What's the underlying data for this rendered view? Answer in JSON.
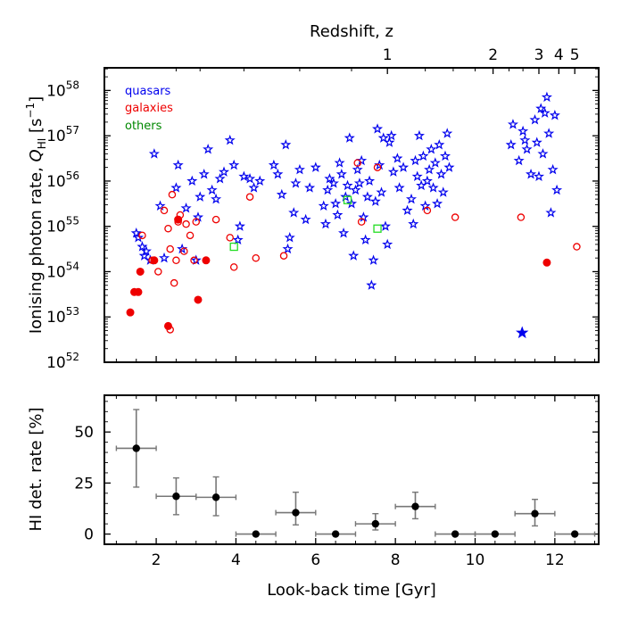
{
  "chart_data": [
    {
      "type": "scatter",
      "title": "",
      "top_axis_label": "Redshift, z",
      "top_ticks": [
        "1",
        "2",
        "3",
        "4",
        "5"
      ],
      "top_tick_times_gyr": [
        7.8,
        10.45,
        11.6,
        12.1,
        12.5
      ],
      "xlabel": "Look-back time [Gyr]",
      "ylabel_prefix": "Ionising photon rate, ",
      "ylabel_symbol": "Q",
      "ylabel_sub": "HI",
      "ylabel_unit_open": " [s",
      "ylabel_unit_exp": "−1",
      "ylabel_unit_close": "]",
      "xlim": [
        0.7,
        13.1
      ],
      "ylim_log10": [
        52,
        58.5
      ],
      "y_tick_base": "10",
      "y_tick_exponents": [
        "52",
        "53",
        "54",
        "55",
        "56",
        "57",
        "58"
      ],
      "legend": [
        {
          "label": "quasars",
          "color": "#0000ee"
        },
        {
          "label": "galaxies",
          "color": "#ee0000"
        },
        {
          "label": "others",
          "color": "#008800"
        }
      ],
      "series": [
        {
          "name": "quasars",
          "marker": "star-open",
          "color": "#0000ee",
          "points": [
            [
              1.95,
              56.6
            ],
            [
              1.5,
              54.85
            ],
            [
              1.55,
              54.75
            ],
            [
              1.65,
              54.55
            ],
            [
              1.7,
              54.35
            ],
            [
              1.75,
              54.45
            ],
            [
              1.85,
              54.25
            ],
            [
              2.1,
              55.45
            ],
            [
              2.2,
              54.3
            ],
            [
              2.5,
              55.85
            ],
            [
              2.55,
              56.35
            ],
            [
              2.65,
              54.5
            ],
            [
              2.75,
              55.4
            ],
            [
              2.9,
              56.0
            ],
            [
              3.0,
              54.25
            ],
            [
              3.05,
              55.2
            ],
            [
              3.1,
              55.65
            ],
            [
              3.2,
              56.15
            ],
            [
              3.3,
              56.7
            ],
            [
              3.4,
              55.8
            ],
            [
              3.5,
              55.6
            ],
            [
              3.6,
              56.05
            ],
            [
              3.7,
              56.2
            ],
            [
              3.85,
              56.9
            ],
            [
              3.95,
              56.35
            ],
            [
              4.05,
              54.7
            ],
            [
              4.1,
              55.0
            ],
            [
              4.2,
              56.1
            ],
            [
              4.35,
              56.05
            ],
            [
              4.45,
              55.85
            ],
            [
              4.6,
              56.0
            ],
            [
              4.95,
              56.35
            ],
            [
              5.05,
              56.15
            ],
            [
              5.15,
              55.7
            ],
            [
              5.25,
              56.8
            ],
            [
              5.3,
              54.5
            ],
            [
              5.35,
              54.75
            ],
            [
              5.45,
              55.3
            ],
            [
              5.5,
              55.95
            ],
            [
              5.6,
              56.25
            ],
            [
              5.75,
              55.15
            ],
            [
              5.85,
              55.85
            ],
            [
              6.0,
              56.3
            ],
            [
              6.2,
              55.45
            ],
            [
              6.25,
              55.05
            ],
            [
              6.3,
              55.8
            ],
            [
              6.35,
              56.05
            ],
            [
              6.45,
              55.95
            ],
            [
              6.5,
              55.5
            ],
            [
              6.55,
              55.25
            ],
            [
              6.6,
              56.4
            ],
            [
              6.65,
              56.15
            ],
            [
              6.7,
              54.85
            ],
            [
              6.75,
              55.65
            ],
            [
              6.8,
              55.9
            ],
            [
              6.85,
              56.95
            ],
            [
              6.9,
              55.5
            ],
            [
              6.95,
              54.35
            ],
            [
              7.0,
              55.8
            ],
            [
              7.05,
              56.25
            ],
            [
              7.1,
              55.95
            ],
            [
              7.15,
              56.45
            ],
            [
              7.2,
              55.2
            ],
            [
              7.25,
              54.7
            ],
            [
              7.3,
              55.65
            ],
            [
              7.35,
              56.0
            ],
            [
              7.4,
              53.7
            ],
            [
              7.45,
              54.25
            ],
            [
              7.5,
              55.55
            ],
            [
              7.55,
              57.15
            ],
            [
              7.6,
              56.35
            ],
            [
              7.65,
              55.75
            ],
            [
              7.7,
              56.95
            ],
            [
              7.75,
              55.0
            ],
            [
              7.8,
              54.6
            ],
            [
              7.85,
              56.85
            ],
            [
              7.9,
              57.0
            ],
            [
              7.95,
              56.2
            ],
            [
              8.05,
              56.5
            ],
            [
              8.1,
              55.85
            ],
            [
              8.2,
              56.3
            ],
            [
              8.3,
              55.35
            ],
            [
              8.4,
              55.6
            ],
            [
              8.45,
              55.05
            ],
            [
              8.5,
              56.45
            ],
            [
              8.55,
              56.1
            ],
            [
              8.6,
              57.0
            ],
            [
              8.65,
              55.9
            ],
            [
              8.7,
              56.55
            ],
            [
              8.75,
              55.45
            ],
            [
              8.8,
              56.0
            ],
            [
              8.85,
              56.25
            ],
            [
              8.9,
              56.7
            ],
            [
              8.95,
              55.85
            ],
            [
              9.0,
              56.4
            ],
            [
              9.05,
              55.5
            ],
            [
              9.1,
              56.8
            ],
            [
              9.15,
              56.15
            ],
            [
              9.2,
              55.75
            ],
            [
              9.25,
              56.55
            ],
            [
              9.3,
              57.05
            ],
            [
              9.35,
              56.3
            ],
            [
              10.9,
              56.8
            ],
            [
              10.95,
              57.25
            ],
            [
              11.1,
              56.45
            ],
            [
              11.2,
              57.1
            ],
            [
              11.25,
              56.9
            ],
            [
              11.3,
              56.7
            ],
            [
              11.4,
              56.15
            ],
            [
              11.5,
              57.35
            ],
            [
              11.55,
              56.85
            ],
            [
              11.6,
              56.1
            ],
            [
              11.65,
              57.6
            ],
            [
              11.7,
              56.6
            ],
            [
              11.75,
              57.5
            ],
            [
              11.8,
              57.85
            ],
            [
              11.85,
              57.05
            ],
            [
              11.9,
              55.3
            ],
            [
              11.95,
              56.25
            ],
            [
              12.0,
              57.45
            ],
            [
              12.05,
              55.8
            ],
            [
              11.18,
              52.65
            ]
          ]
        },
        {
          "name": "galaxies (open)",
          "marker": "circle-open",
          "color": "#ee0000",
          "points": [
            [
              1.65,
              54.8
            ],
            [
              1.9,
              54.25
            ],
            [
              2.05,
              54.0
            ],
            [
              2.2,
              55.35
            ],
            [
              2.3,
              54.95
            ],
            [
              2.35,
              54.5
            ],
            [
              2.4,
              55.7
            ],
            [
              2.45,
              53.75
            ],
            [
              2.5,
              54.25
            ],
            [
              2.55,
              55.1
            ],
            [
              2.6,
              55.25
            ],
            [
              2.7,
              54.45
            ],
            [
              2.75,
              55.05
            ],
            [
              2.85,
              54.8
            ],
            [
              2.95,
              54.25
            ],
            [
              3.0,
              55.1
            ],
            [
              3.5,
              55.15
            ],
            [
              3.85,
              54.75
            ],
            [
              3.95,
              54.1
            ],
            [
              4.35,
              55.65
            ],
            [
              4.5,
              54.3
            ],
            [
              5.2,
              54.35
            ],
            [
              7.05,
              56.4
            ],
            [
              7.15,
              55.1
            ],
            [
              7.55,
              56.3
            ],
            [
              8.8,
              55.35
            ],
            [
              9.5,
              55.2
            ],
            [
              11.15,
              55.2
            ],
            [
              12.55,
              54.55
            ],
            [
              2.35,
              52.72
            ]
          ]
        },
        {
          "name": "galaxies (filled)",
          "marker": "circle-filled",
          "color": "#ee0000",
          "points": [
            [
              1.35,
              53.1
            ],
            [
              1.45,
              53.55
            ],
            [
              1.55,
              53.55
            ],
            [
              1.6,
              54.0
            ],
            [
              1.95,
              54.25
            ],
            [
              2.3,
              52.8
            ],
            [
              2.55,
              55.15
            ],
            [
              3.05,
              53.38
            ],
            [
              3.25,
              54.25
            ],
            [
              11.8,
              54.2
            ]
          ]
        },
        {
          "name": "others",
          "marker": "square-open",
          "color": "#22dd22",
          "points": [
            [
              3.95,
              54.55
            ],
            [
              6.8,
              55.58
            ],
            [
              7.55,
              54.95
            ]
          ]
        }
      ]
    },
    {
      "type": "errorbar",
      "title": "",
      "xlabel": "Look-back time [Gyr]",
      "ylabel": "HI det. rate [%]",
      "xlim": [
        0.7,
        13.1
      ],
      "ylim": [
        -5,
        68
      ],
      "y_ticks": [
        "0",
        "25",
        "50"
      ],
      "x_ticks": [
        "2",
        "4",
        "6",
        "8",
        "10",
        "12"
      ],
      "x_tick_values": [
        2,
        4,
        6,
        8,
        10,
        12
      ],
      "points": [
        {
          "x": 1.5,
          "xerr": 0.5,
          "y": 42,
          "yerr_low": 19,
          "yerr_high": 19
        },
        {
          "x": 2.5,
          "xerr": 0.5,
          "y": 18.5,
          "yerr_low": 9,
          "yerr_high": 9
        },
        {
          "x": 3.5,
          "xerr": 0.5,
          "y": 18,
          "yerr_low": 9,
          "yerr_high": 10
        },
        {
          "x": 4.5,
          "xerr": 0.5,
          "y": 0,
          "yerr_low": 0,
          "yerr_high": 0
        },
        {
          "x": 5.5,
          "xerr": 0.5,
          "y": 10.5,
          "yerr_low": 6,
          "yerr_high": 10
        },
        {
          "x": 6.5,
          "xerr": 0.5,
          "y": 0,
          "yerr_low": 0,
          "yerr_high": 0
        },
        {
          "x": 7.5,
          "xerr": 0.5,
          "y": 5,
          "yerr_low": 3,
          "yerr_high": 5
        },
        {
          "x": 8.5,
          "xerr": 0.5,
          "y": 13.5,
          "yerr_low": 6,
          "yerr_high": 7
        },
        {
          "x": 9.5,
          "xerr": 0.5,
          "y": 0,
          "yerr_low": 0,
          "yerr_high": 0
        },
        {
          "x": 10.5,
          "xerr": 0.5,
          "y": 0,
          "yerr_low": 0,
          "yerr_high": 0
        },
        {
          "x": 11.5,
          "xerr": 0.5,
          "y": 10,
          "yerr_low": 6,
          "yerr_high": 7
        },
        {
          "x": 12.5,
          "xerr": 0.5,
          "y": 0,
          "yerr_low": 0,
          "yerr_high": 0
        }
      ]
    }
  ]
}
